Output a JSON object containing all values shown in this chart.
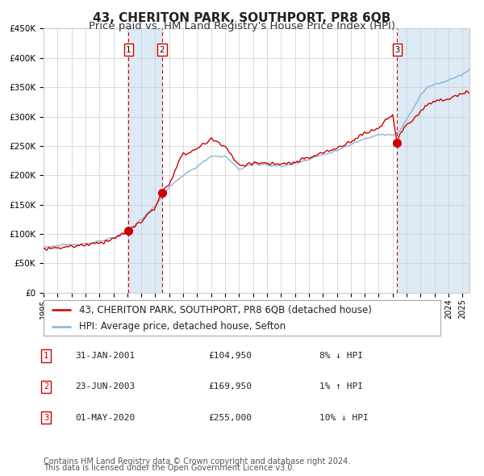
{
  "title": "43, CHERITON PARK, SOUTHPORT, PR8 6QB",
  "subtitle": "Price paid vs. HM Land Registry's House Price Index (HPI)",
  "legend_line1": "43, CHERITON PARK, SOUTHPORT, PR8 6QB (detached house)",
  "legend_line2": "HPI: Average price, detached house, Sefton",
  "footer_line1": "Contains HM Land Registry data © Crown copyright and database right 2024.",
  "footer_line2": "This data is licensed under the Open Government Licence v3.0.",
  "transactions": [
    {
      "label": "1",
      "date_str": "31-JAN-2001",
      "price": 104950,
      "hpi_note": "8% ↓ HPI",
      "x": 2001.08
    },
    {
      "label": "2",
      "date_str": "23-JUN-2003",
      "price": 169950,
      "hpi_note": "1% ↑ HPI",
      "x": 2003.48
    },
    {
      "label": "3",
      "date_str": "01-MAY-2020",
      "price": 255000,
      "hpi_note": "10% ↓ HPI",
      "x": 2020.33
    }
  ],
  "ylim": [
    0,
    450000
  ],
  "yticks": [
    0,
    50000,
    100000,
    150000,
    200000,
    250000,
    300000,
    350000,
    400000,
    450000
  ],
  "ytick_labels": [
    "£0",
    "£50K",
    "£100K",
    "£150K",
    "£200K",
    "£250K",
    "£300K",
    "£350K",
    "£400K",
    "£450K"
  ],
  "xlim": [
    1995.0,
    2025.5
  ],
  "xtick_years": [
    1995,
    1996,
    1997,
    1998,
    1999,
    2000,
    2001,
    2002,
    2003,
    2004,
    2005,
    2006,
    2007,
    2008,
    2009,
    2010,
    2011,
    2012,
    2013,
    2014,
    2015,
    2016,
    2017,
    2018,
    2019,
    2020,
    2021,
    2022,
    2023,
    2024,
    2025
  ],
  "hpi_color": "#8ab4d4",
  "price_color": "#cc0000",
  "marker_color": "#cc0000",
  "dashed_line_color": "#cc0000",
  "shade_color": "#ddeaf5",
  "grid_color": "#cccccc",
  "background_color": "#ffffff",
  "title_fontsize": 11,
  "subtitle_fontsize": 9.5,
  "axis_label_fontsize": 7.5,
  "legend_fontsize": 8.5,
  "footer_fontsize": 7,
  "hpi_anchors_x": [
    1995.0,
    1996.0,
    1997.0,
    1998.0,
    1999.0,
    2000.0,
    2001.0,
    2002.0,
    2003.0,
    2004.0,
    2005.0,
    2006.0,
    2007.0,
    2008.0,
    2009.0,
    2010.0,
    2011.0,
    2012.0,
    2013.0,
    2014.0,
    2015.0,
    2016.0,
    2017.0,
    2018.0,
    2019.0,
    2020.0,
    2020.5,
    2021.0,
    2021.5,
    2022.0,
    2022.5,
    2023.0,
    2023.5,
    2024.0,
    2024.5,
    2025.0,
    2025.5
  ],
  "hpi_anchors_y": [
    78000,
    80000,
    82000,
    84000,
    87000,
    93000,
    105000,
    125000,
    148000,
    180000,
    200000,
    215000,
    232000,
    233000,
    210000,
    220000,
    218000,
    215000,
    220000,
    228000,
    235000,
    242000,
    252000,
    263000,
    270000,
    268000,
    275000,
    295000,
    315000,
    338000,
    350000,
    355000,
    358000,
    362000,
    368000,
    372000,
    380000
  ],
  "price_anchors_x": [
    1995.0,
    1996.0,
    1997.0,
    1998.0,
    1999.0,
    2000.0,
    2001.08,
    2002.0,
    2003.0,
    2003.48,
    2004.0,
    2004.5,
    2005.0,
    2006.0,
    2007.0,
    2008.0,
    2009.0,
    2010.0,
    2011.0,
    2012.0,
    2013.0,
    2014.0,
    2015.0,
    2016.0,
    2017.0,
    2018.0,
    2019.0,
    2019.5,
    2020.0,
    2020.33,
    2020.5,
    2021.0,
    2021.5,
    2022.0,
    2022.5,
    2023.0,
    2023.5,
    2024.0,
    2024.5,
    2025.0,
    2025.5
  ],
  "price_anchors_y": [
    75000,
    77000,
    79000,
    82000,
    85000,
    92000,
    104950,
    122000,
    145000,
    169950,
    185000,
    215000,
    235000,
    245000,
    262000,
    250000,
    215000,
    222000,
    220000,
    218000,
    222000,
    230000,
    238000,
    246000,
    258000,
    272000,
    280000,
    296000,
    300000,
    255000,
    270000,
    285000,
    295000,
    310000,
    320000,
    325000,
    328000,
    330000,
    335000,
    338000,
    342000
  ]
}
